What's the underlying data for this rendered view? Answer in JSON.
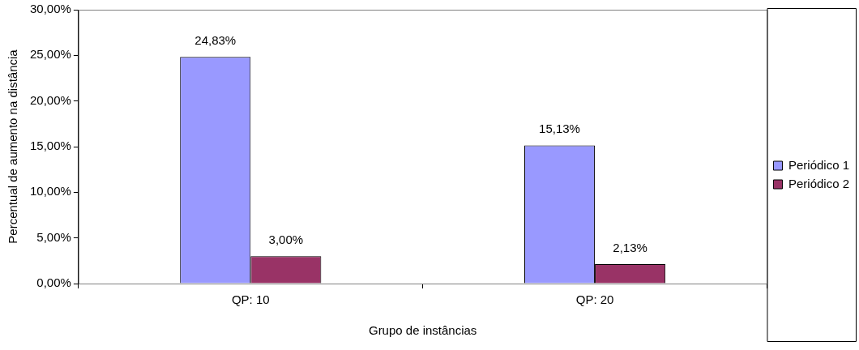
{
  "chart_data": {
    "type": "bar",
    "xlabel": "Grupo de instâncias",
    "ylabel": "Percentual de aumento na distância",
    "categories": [
      "QP: 10",
      "QP: 20"
    ],
    "series": [
      {
        "name": "Periódico 1",
        "color": "#9999ff",
        "values": [
          24.83,
          15.13
        ],
        "value_labels": [
          "24,83%",
          "15,13%"
        ]
      },
      {
        "name": "Periódico 2",
        "color": "#993366",
        "values": [
          3.0,
          2.13
        ],
        "value_labels": [
          "3,00%",
          "2,13%"
        ]
      }
    ],
    "ylim": [
      0,
      30
    ],
    "yticks": [
      {
        "value": 0,
        "label": "0,00%"
      },
      {
        "value": 5,
        "label": "5,00%"
      },
      {
        "value": 10,
        "label": "10,00%"
      },
      {
        "value": 15,
        "label": "15,00%"
      },
      {
        "value": 20,
        "label": "20,00%"
      },
      {
        "value": 25,
        "label": "25,00%"
      },
      {
        "value": 30,
        "label": "30,00%"
      }
    ],
    "grid": false,
    "legend": "right"
  }
}
